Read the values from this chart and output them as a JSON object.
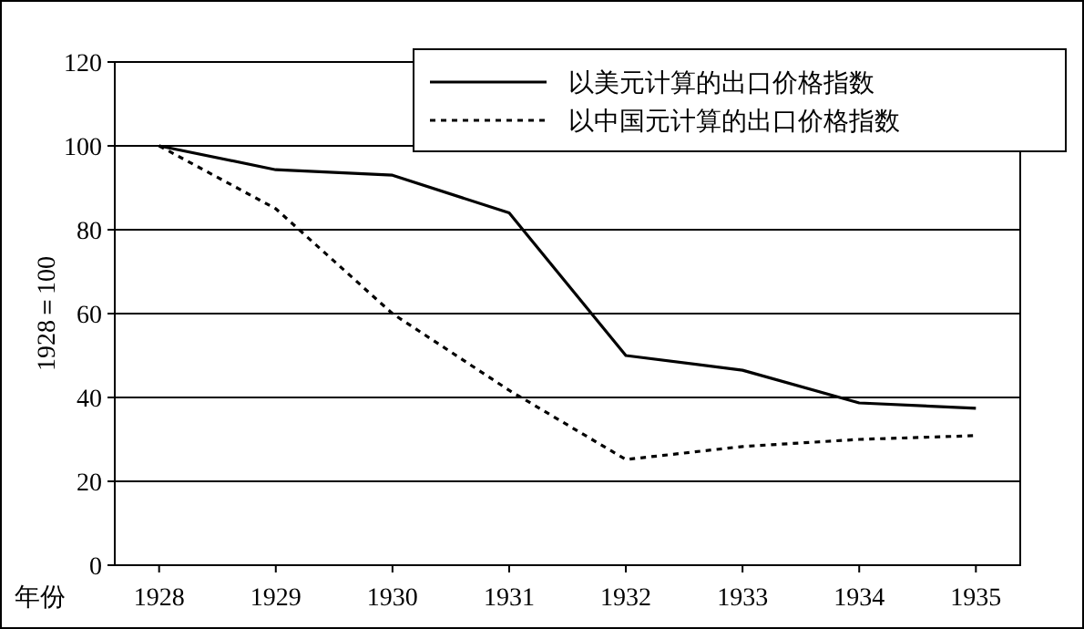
{
  "chart_data": {
    "type": "line",
    "xlabel": "年份",
    "ylabel": "1928＝100",
    "categories": [
      "1928",
      "1929",
      "1930",
      "1931",
      "1932",
      "1933",
      "1934",
      "1935"
    ],
    "series": [
      {
        "name": "以美元计算的出口价格指数",
        "color": "#000000",
        "line_style": "solid",
        "values": [
          100,
          94.3,
          93,
          84,
          50,
          46.5,
          38.7,
          37.4
        ]
      },
      {
        "name": "以中国元计算的出口价格指数",
        "color": "#000000",
        "line_style": "dotted",
        "values": [
          100,
          85,
          60,
          41.7,
          25.2,
          28.3,
          30,
          30.9
        ]
      }
    ],
    "ylim": [
      0,
      120
    ],
    "yticks": [
      0,
      20,
      40,
      60,
      80,
      100,
      120
    ],
    "grid": "y",
    "legend": "top right"
  }
}
